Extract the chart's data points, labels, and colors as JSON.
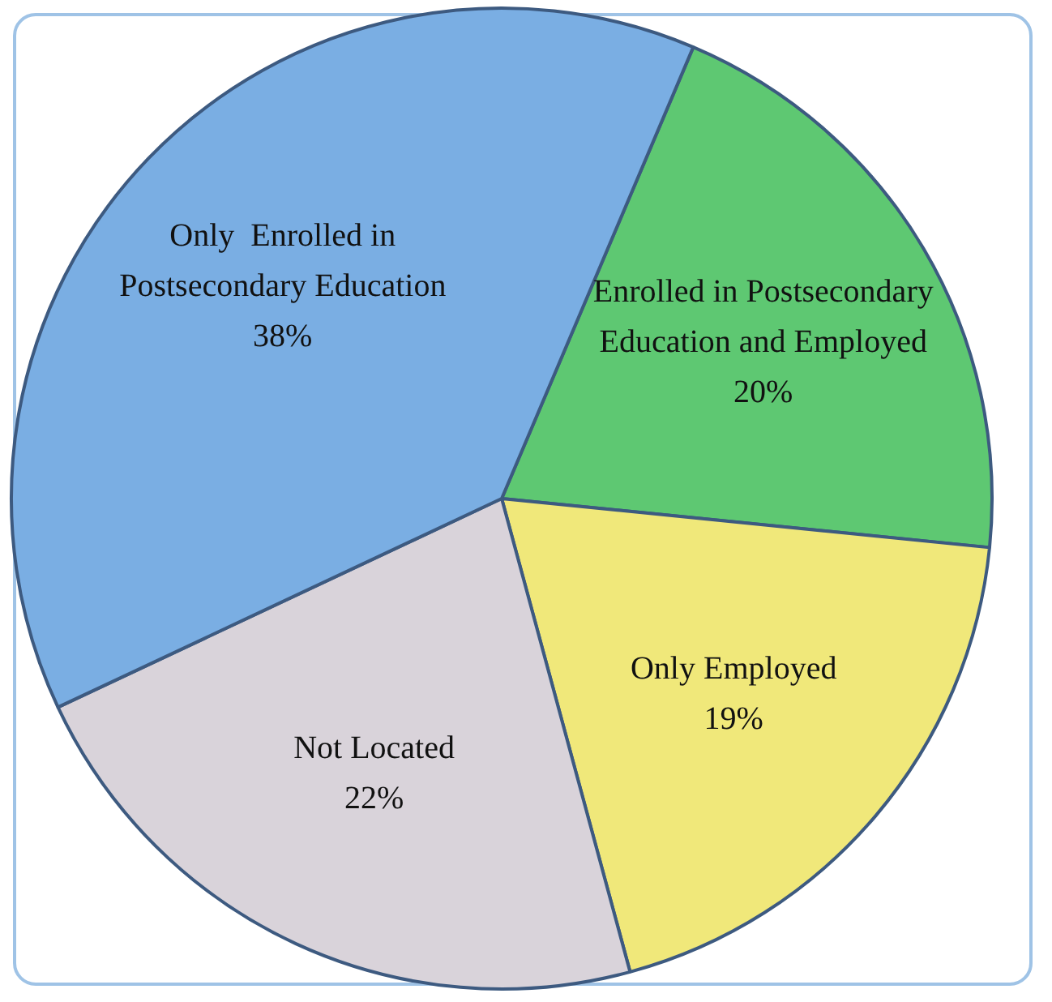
{
  "chart_data": {
    "type": "pie",
    "categories": [
      "Enrolled in Postsecondary Education and Employed",
      "Only Employed",
      "Not Located",
      "Only  Enrolled in Postsecondary Education"
    ],
    "values": [
      20,
      19,
      22,
      38
    ],
    "value_labels": [
      "20%",
      "19%",
      "22%",
      "38%"
    ],
    "colors": [
      "#5ec872",
      "#f0e87a",
      "#d9d3da",
      "#7aaee3"
    ],
    "legend": false
  }
}
